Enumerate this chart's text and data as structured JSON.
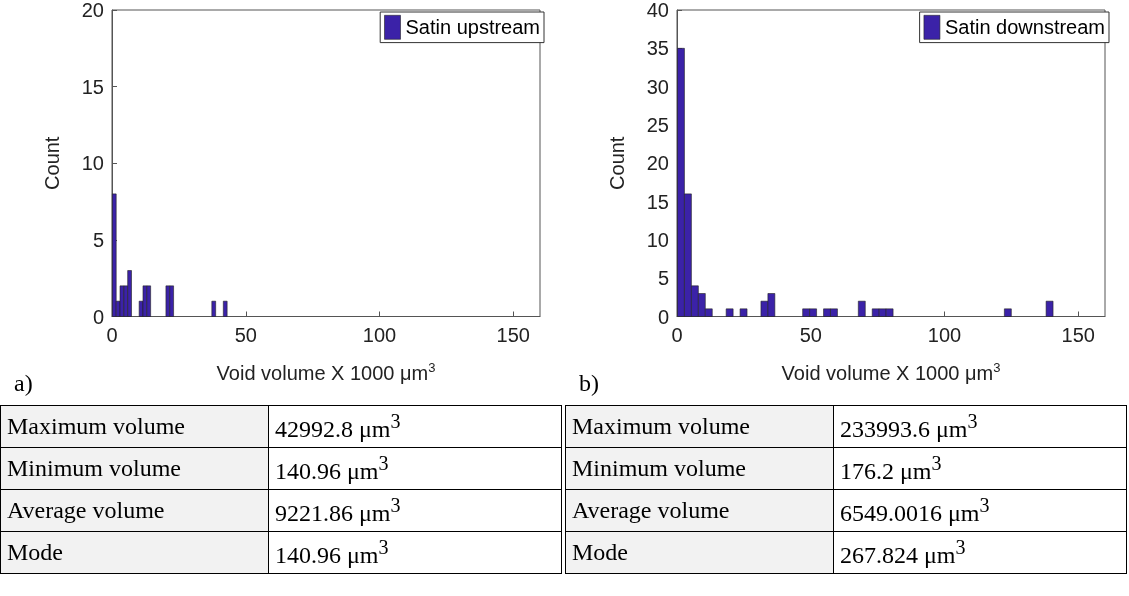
{
  "chart_data": [
    {
      "type": "histogram",
      "xlabel": "Void volume X 1000 μm$^{3}$",
      "ylabel": "Count",
      "bins": [
        0.14,
        1.57,
        3,
        4.43,
        5.86,
        7.29,
        8.72,
        10.15,
        11.58,
        13.01,
        14.44,
        15.87,
        17.3,
        18.73,
        20.16,
        21.59,
        23.02,
        24.45,
        25.88,
        27.31,
        28.74,
        30.17,
        31.6,
        33.03,
        34.46,
        35.89,
        37.32,
        38.75,
        40.18,
        41.61,
        43.04
      ],
      "series": [
        {
          "name": "Satin upstream",
          "color": "#3b22a8",
          "values": [
            8,
            1,
            2,
            2,
            3,
            0,
            0,
            1,
            2,
            2,
            0,
            0,
            0,
            0,
            2,
            2,
            0,
            0,
            0,
            0,
            0,
            0,
            0,
            0,
            0,
            0,
            1,
            0,
            0,
            1
          ]
        }
      ],
      "xlim": [
        0,
        160
      ],
      "xticks": [
        0,
        50,
        100,
        150
      ],
      "ylim": [
        0,
        20
      ],
      "yticks": [
        0,
        5,
        10,
        15,
        20
      ],
      "grid": false,
      "legend": "top right",
      "annotations": [
        "a)",
        "Maximum volume",
        "42992.8 μm$^{3}$",
        "Minimum volume",
        "140.96 μm$^{3}$",
        "Average volume",
        "9221.86  μm$^{3}$",
        "Mode",
        "140.96 μm$^{3}$"
      ]
    },
    {
      "type": "histogram",
      "xlabel": "Void volume X 1000 μm$^{3}$",
      "ylabel": "Count",
      "bins": [
        0.18,
        2.78,
        5.38,
        7.98,
        10.58,
        13.18,
        15.78,
        18.38,
        20.98,
        23.58,
        26.18,
        28.78,
        31.38,
        33.98,
        36.58,
        39.18,
        41.78,
        44.38,
        46.98,
        49.58,
        52.18,
        54.78,
        57.38,
        59.98,
        62.58,
        65.18,
        67.78,
        70.38,
        72.98,
        75.58,
        78.18,
        80.78,
        83.38,
        85.98,
        88.58,
        91.18,
        93.78,
        96.38,
        98.98,
        101.58,
        104.18,
        106.78,
        109.38,
        111.98,
        114.58,
        117.18,
        119.78,
        122.38,
        124.98,
        127.58,
        130.18,
        132.78,
        135.38,
        137.98,
        140.58
      ],
      "series": [
        {
          "name": "Satin downstream",
          "color": "#3b22a8",
          "values": [
            35,
            16,
            4,
            3,
            1,
            0,
            0,
            1,
            0,
            1,
            0,
            0,
            2,
            3,
            0,
            0,
            0,
            0,
            1,
            1,
            0,
            1,
            1,
            0,
            0,
            0,
            2,
            0,
            1,
            1,
            1,
            0,
            0,
            0,
            0,
            0,
            0,
            0,
            0,
            0,
            0,
            0,
            0,
            0,
            0,
            0,
            0,
            1,
            0,
            0,
            0,
            0,
            0,
            2
          ]
        }
      ],
      "xlim": [
        0,
        160
      ],
      "xticks": [
        0,
        50,
        100,
        150
      ],
      "ylim": [
        0,
        40
      ],
      "yticks": [
        0,
        5,
        10,
        15,
        20,
        25,
        30,
        35,
        40
      ],
      "grid": false,
      "legend": "top right",
      "annotations": [
        "b)",
        "Maximum volume",
        "233993.6 μm$^{3}$",
        "Minimum volume",
        "176.2 μm$^{3}$",
        "Average volume",
        "6549.0016 μm$^{3}$",
        "Mode",
        "267.824 μm$^{3}$"
      ]
    }
  ]
}
